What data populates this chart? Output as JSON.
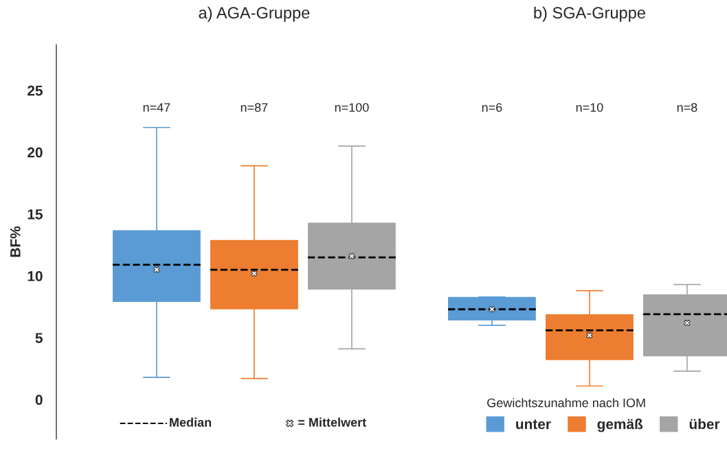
{
  "chart_data": {
    "type": "box",
    "ylabel": "BF%",
    "categories": [
      "a) AGA-Gruppe",
      "b) SGA-Gruppe"
    ],
    "ylim": [
      -3.2,
      28.7
    ],
    "yticks": [
      0,
      5,
      10,
      15,
      20,
      25
    ],
    "legend": "bottom right",
    "legend_title": "Gewichtszunahme nach IOM",
    "series": [
      {
        "name": "unter",
        "color": "#5b9bd5",
        "boxes": [
          {
            "low": 1.8,
            "q1": 7.9,
            "median": 10.9,
            "q3": 13.7,
            "high": 22.0,
            "mean": 10.5
          },
          {
            "low": 6.0,
            "q1": 6.4,
            "median": 7.3,
            "q3": 8.3,
            "high": 8.3,
            "mean": 7.3
          }
        ],
        "value_labels": [
          "n=47",
          "n=6"
        ]
      },
      {
        "name": "gemäß",
        "color": "#ed7d31",
        "boxes": [
          {
            "low": 1.7,
            "q1": 7.3,
            "median": 10.5,
            "q3": 12.9,
            "high": 18.9,
            "mean": 10.2
          },
          {
            "low": 1.1,
            "q1": 3.2,
            "median": 5.6,
            "q3": 6.9,
            "high": 8.8,
            "mean": 5.2
          }
        ],
        "value_labels": [
          "n=87",
          "n=10"
        ]
      },
      {
        "name": "über",
        "color": "#a5a5a5",
        "boxes": [
          {
            "low": 4.1,
            "q1": 8.9,
            "median": 11.5,
            "q3": 14.3,
            "high": 20.5,
            "mean": 11.6
          },
          {
            "low": 2.3,
            "q1": 3.5,
            "median": 6.9,
            "q3": 8.5,
            "high": 9.3,
            "mean": 6.2
          }
        ],
        "value_labels": [
          "n=100",
          "n=8"
        ]
      }
    ],
    "annotations": [
      "Median",
      "= Mittelwert"
    ]
  }
}
